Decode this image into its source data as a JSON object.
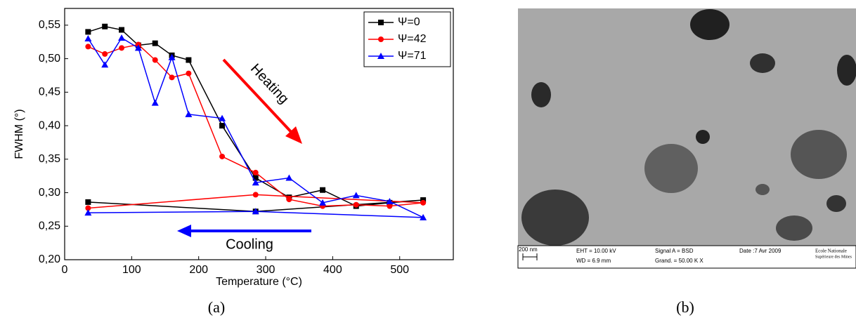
{
  "chart_data": {
    "type": "line",
    "xlabel": "Temperature (°C)",
    "ylabel": "FWHM (°)",
    "xlim": [
      0,
      580
    ],
    "xticks": [
      0,
      100,
      200,
      300,
      400,
      500
    ],
    "ylim": [
      0.2,
      0.575
    ],
    "yticks": [
      {
        "value": 0.2,
        "label": "0,20"
      },
      {
        "value": 0.25,
        "label": "0,25"
      },
      {
        "value": 0.3,
        "label": "0,30"
      },
      {
        "value": 0.35,
        "label": "0,35"
      },
      {
        "value": 0.4,
        "label": "0,40"
      },
      {
        "value": 0.45,
        "label": "0,45"
      },
      {
        "value": 0.5,
        "label": "0,50"
      },
      {
        "value": 0.55,
        "label": "0,55"
      }
    ],
    "legend": "top-right",
    "series": [
      {
        "name": "Ψ=0",
        "color": "#000000",
        "marker": "square",
        "x": [
          35,
          60,
          85,
          110,
          135,
          160,
          185,
          235,
          285,
          335,
          385,
          435,
          485,
          535,
          285,
          35
        ],
        "values": [
          0.54,
          0.548,
          0.543,
          0.52,
          0.523,
          0.505,
          0.498,
          0.4,
          0.322,
          0.293,
          0.304,
          0.28,
          0.285,
          0.289,
          0.272,
          0.286
        ]
      },
      {
        "name": "Ψ=42",
        "color": "#ff0000",
        "marker": "circle",
        "x": [
          35,
          60,
          85,
          110,
          135,
          160,
          185,
          235,
          285,
          335,
          385,
          435,
          485,
          535,
          285,
          35
        ],
        "values": [
          0.518,
          0.507,
          0.516,
          0.521,
          0.498,
          0.472,
          0.478,
          0.354,
          0.33,
          0.29,
          0.28,
          0.282,
          0.28,
          0.285,
          0.297,
          0.277
        ]
      },
      {
        "name": "Ψ=71",
        "color": "#0000ff",
        "marker": "triangle",
        "x": [
          35,
          60,
          85,
          110,
          135,
          160,
          185,
          235,
          285,
          335,
          385,
          435,
          485,
          535,
          285,
          35
        ],
        "values": [
          0.53,
          0.491,
          0.531,
          0.516,
          0.434,
          0.502,
          0.417,
          0.411,
          0.315,
          0.322,
          0.285,
          0.296,
          0.287,
          0.263,
          0.272,
          0.27
        ]
      }
    ],
    "annotations": [
      {
        "text": "Heating",
        "color": "#ff0000"
      },
      {
        "text": "Cooling",
        "color": "#0000ff"
      }
    ]
  },
  "figure": {
    "labels": [
      "(a)",
      "(b)"
    ],
    "micrograph": {
      "scale": "200 nm",
      "eht": "EHT = 10.00 kV",
      "wd": "WD = 6.9 mm",
      "signal": "Signal A = BSD",
      "mag": "Grand. = 50.00 K X",
      "date": "Date :7 Avr 2009",
      "logo": [
        "Ecole Nationale",
        "Supérieure des Mines"
      ]
    }
  }
}
